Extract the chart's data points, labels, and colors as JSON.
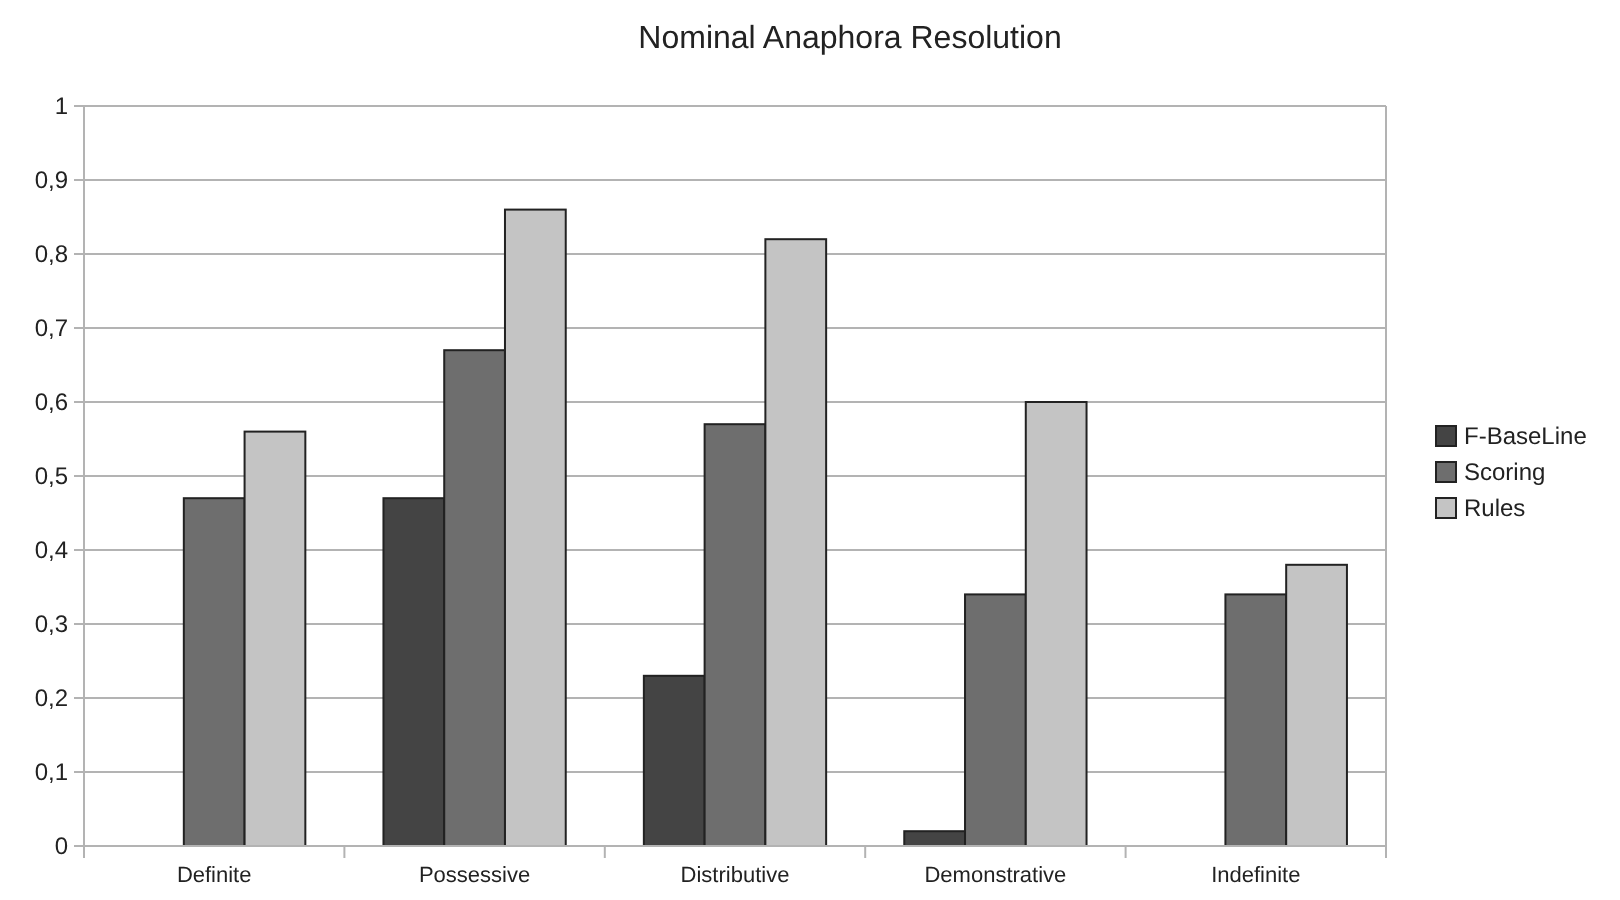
{
  "chart_data": {
    "type": "bar",
    "title": "Nominal Anaphora Resolution",
    "categories": [
      "Definite",
      "Possessive",
      "Distributive",
      "Demonstrative",
      "Indefinite"
    ],
    "series": [
      {
        "name": "F-BaseLine",
        "color": "#444444",
        "values": [
          0,
          0.47,
          0.23,
          0.02,
          0
        ]
      },
      {
        "name": "Scoring",
        "color": "#6e6e6e",
        "values": [
          0.47,
          0.67,
          0.57,
          0.34,
          0.34
        ]
      },
      {
        "name": "Rules",
        "color": "#c4c4c4",
        "values": [
          0.56,
          0.86,
          0.82,
          0.6,
          0.38
        ]
      }
    ],
    "ylim": [
      0,
      1
    ],
    "yticks": [
      0,
      {
        "value": 0.1,
        "label": "0,1"
      },
      {
        "value": 0.2,
        "label": "0,2"
      },
      {
        "value": 0.3,
        "label": "0,3"
      },
      {
        "value": 0.4,
        "label": "0,4"
      },
      {
        "value": 0.5,
        "label": "0,5"
      },
      {
        "value": 0.6,
        "label": "0,6"
      },
      {
        "value": 0.7,
        "label": "0,7"
      },
      {
        "value": 0.8,
        "label": "0,8"
      },
      {
        "value": 0.9,
        "label": "0,9"
      },
      1
    ],
    "grid": "y",
    "legend": "right"
  }
}
